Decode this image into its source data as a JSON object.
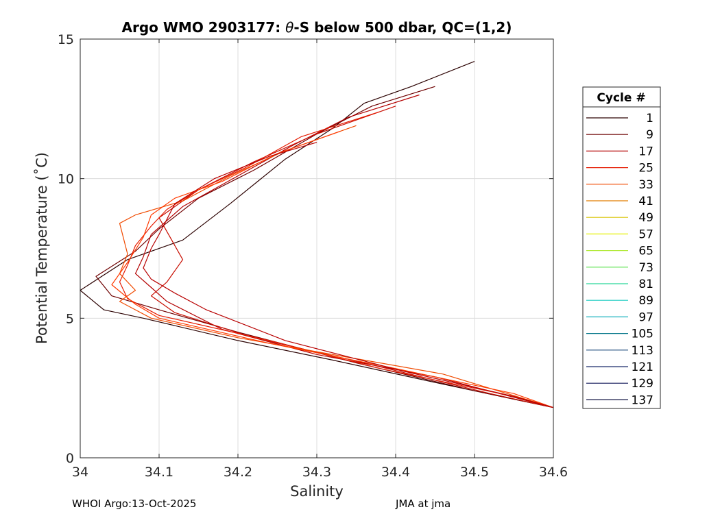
{
  "chart_data": {
    "type": "line",
    "title_prefix": "Argo WMO 2903177: ",
    "title_symbol": "θ",
    "title_suffix": "-S below 500 dbar,  QC=(1,2)",
    "xlabel": "Salinity",
    "ylabel": "Potential Temperature (˚C)",
    "xlim": [
      34.0,
      34.6
    ],
    "ylim": [
      0,
      15
    ],
    "xticks": [
      34.0,
      34.1,
      34.2,
      34.3,
      34.4,
      34.5,
      34.6
    ],
    "xtick_labels": [
      "34",
      "34.1",
      "34.2",
      "34.3",
      "34.4",
      "34.5",
      "34.6"
    ],
    "yticks": [
      0,
      5,
      10,
      15
    ],
    "ytick_labels": [
      "0",
      "5",
      "10",
      "15"
    ],
    "grid": true,
    "legend": {
      "title": "Cycle #",
      "placement": "right-outside",
      "entries": [
        {
          "label": "1",
          "color": "#2a0000"
        },
        {
          "label": "9",
          "color": "#6e0000"
        },
        {
          "label": "17",
          "color": "#b30000"
        },
        {
          "label": "25",
          "color": "#e51a00"
        },
        {
          "label": "33",
          "color": "#f04a00"
        },
        {
          "label": "41",
          "color": "#e27d00"
        },
        {
          "label": "49",
          "color": "#d9c400"
        },
        {
          "label": "57",
          "color": "#e5f000"
        },
        {
          "label": "65",
          "color": "#b2ea3a"
        },
        {
          "label": "73",
          "color": "#58e04a"
        },
        {
          "label": "81",
          "color": "#2ad89a"
        },
        {
          "label": "89",
          "color": "#1ccbc0"
        },
        {
          "label": "97",
          "color": "#11b0bb"
        },
        {
          "label": "105",
          "color": "#0a7a8c"
        },
        {
          "label": "113",
          "color": "#18477a"
        },
        {
          "label": "121",
          "color": "#1b2a6a"
        },
        {
          "label": "129",
          "color": "#10185a"
        },
        {
          "label": "137",
          "color": "#070a3a"
        }
      ]
    },
    "series": [
      {
        "color": "#2a0000",
        "points": [
          [
            34.5,
            14.2
          ],
          [
            34.42,
            13.3
          ],
          [
            34.36,
            12.7
          ],
          [
            34.32,
            11.8
          ],
          [
            34.26,
            10.7
          ],
          [
            34.19,
            9.1
          ],
          [
            34.13,
            7.8
          ],
          [
            34.06,
            7.1
          ],
          [
            34.0,
            6.0
          ],
          [
            34.03,
            5.3
          ],
          [
            34.08,
            5.0
          ],
          [
            34.2,
            4.2
          ],
          [
            34.32,
            3.5
          ],
          [
            34.45,
            2.7
          ],
          [
            34.6,
            1.8
          ]
        ]
      },
      {
        "color": "#6e0000",
        "points": [
          [
            34.45,
            13.3
          ],
          [
            34.37,
            12.6
          ],
          [
            34.3,
            11.6
          ],
          [
            34.22,
            10.3
          ],
          [
            34.15,
            9.3
          ],
          [
            34.1,
            8.2
          ],
          [
            34.07,
            7.4
          ],
          [
            34.02,
            6.5
          ],
          [
            34.04,
            5.8
          ],
          [
            34.1,
            5.3
          ],
          [
            34.2,
            4.5
          ],
          [
            34.35,
            3.4
          ],
          [
            34.5,
            2.4
          ],
          [
            34.6,
            1.8
          ]
        ]
      },
      {
        "color": "#b30000",
        "points": [
          [
            34.43,
            13.0
          ],
          [
            34.34,
            12.2
          ],
          [
            34.27,
            11.2
          ],
          [
            34.2,
            10.1
          ],
          [
            34.13,
            9.0
          ],
          [
            34.09,
            8.0
          ],
          [
            34.08,
            7.2
          ],
          [
            34.07,
            6.6
          ],
          [
            34.09,
            6.1
          ],
          [
            34.11,
            5.6
          ],
          [
            34.18,
            4.6
          ],
          [
            34.3,
            3.7
          ],
          [
            34.45,
            2.9
          ],
          [
            34.6,
            1.8
          ]
        ]
      },
      {
        "color": "#c80d00",
        "points": [
          [
            34.4,
            12.6
          ],
          [
            34.3,
            11.6
          ],
          [
            34.22,
            10.6
          ],
          [
            34.15,
            9.6
          ],
          [
            34.1,
            8.6
          ],
          [
            34.12,
            7.6
          ],
          [
            34.13,
            7.1
          ],
          [
            34.11,
            6.3
          ],
          [
            34.09,
            5.8
          ],
          [
            34.12,
            5.2
          ],
          [
            34.22,
            4.3
          ],
          [
            34.36,
            3.4
          ],
          [
            34.52,
            2.3
          ],
          [
            34.6,
            1.8
          ]
        ]
      },
      {
        "color": "#e51a00",
        "points": [
          [
            34.38,
            12.4
          ],
          [
            34.28,
            11.5
          ],
          [
            34.21,
            10.4
          ],
          [
            34.15,
            9.6
          ],
          [
            34.11,
            8.9
          ],
          [
            34.09,
            8.3
          ],
          [
            34.07,
            7.6
          ],
          [
            34.06,
            6.9
          ],
          [
            34.05,
            6.3
          ],
          [
            34.06,
            5.7
          ],
          [
            34.1,
            5.1
          ],
          [
            34.24,
            4.2
          ],
          [
            34.38,
            3.2
          ],
          [
            34.55,
            2.2
          ],
          [
            34.6,
            1.8
          ]
        ]
      },
      {
        "color": "#f04a00",
        "points": [
          [
            34.35,
            11.9
          ],
          [
            34.26,
            11.0
          ],
          [
            34.19,
            10.1
          ],
          [
            34.13,
            9.2
          ],
          [
            34.07,
            8.7
          ],
          [
            34.05,
            8.4
          ],
          [
            34.06,
            7.3
          ],
          [
            34.05,
            6.6
          ],
          [
            34.07,
            6.0
          ],
          [
            34.05,
            5.6
          ],
          [
            34.09,
            5.0
          ],
          [
            34.2,
            4.3
          ],
          [
            34.34,
            3.6
          ],
          [
            34.46,
            3.0
          ],
          [
            34.6,
            1.8
          ]
        ]
      },
      {
        "color": "#ff3a00",
        "points": [
          [
            34.33,
            11.7
          ],
          [
            34.25,
            10.9
          ],
          [
            34.18,
            9.9
          ],
          [
            34.12,
            9.3
          ],
          [
            34.09,
            8.7
          ],
          [
            34.08,
            7.9
          ],
          [
            34.06,
            7.0
          ],
          [
            34.04,
            6.2
          ],
          [
            34.07,
            5.5
          ],
          [
            34.1,
            5.0
          ],
          [
            34.24,
            4.1
          ],
          [
            34.4,
            3.2
          ],
          [
            34.55,
            2.3
          ],
          [
            34.6,
            1.8
          ]
        ]
      },
      {
        "color": "#b80000",
        "points": [
          [
            34.3,
            11.3
          ],
          [
            34.24,
            10.8
          ],
          [
            34.17,
            10.0
          ],
          [
            34.12,
            9.1
          ],
          [
            34.1,
            8.0
          ],
          [
            34.09,
            7.5
          ],
          [
            34.08,
            6.8
          ],
          [
            34.09,
            6.4
          ],
          [
            34.12,
            5.9
          ],
          [
            34.16,
            5.3
          ],
          [
            34.26,
            4.2
          ],
          [
            34.41,
            3.1
          ],
          [
            34.55,
            2.2
          ],
          [
            34.6,
            1.8
          ]
        ]
      }
    ]
  },
  "footer": {
    "left": "WHOI Argo:13-Oct-2025",
    "right": "JMA at jma"
  }
}
